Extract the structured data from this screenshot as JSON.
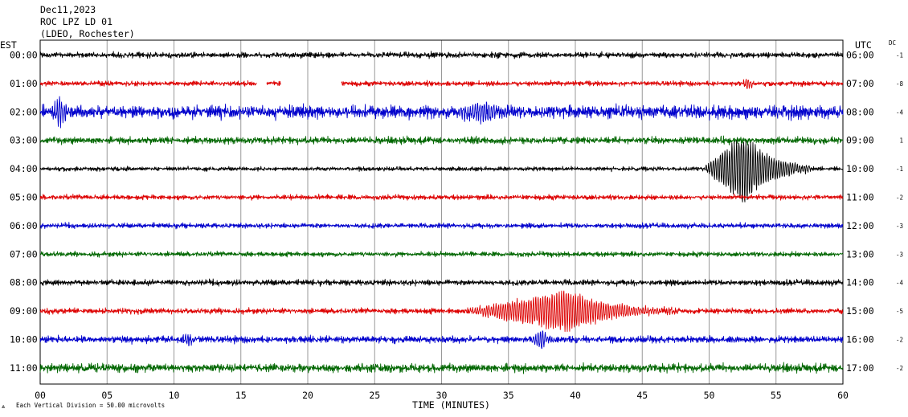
{
  "header": {
    "date": "Dec11,2023",
    "station": "ROC LPZ LD 01",
    "network": "(LDEO, Rochester)"
  },
  "chart_data": {
    "type": "line",
    "title": "",
    "xlabel": "TIME (MINUTES)",
    "left_axis_label": "EST",
    "right_axis_label": "UTC",
    "dc_label": "DC",
    "xlim": [
      0,
      60
    ],
    "x_ticks": [
      "00",
      "05",
      "10",
      "15",
      "20",
      "25",
      "30",
      "35",
      "40",
      "45",
      "50",
      "55",
      "60"
    ],
    "grid": "vertical-every-5-min",
    "colors": [
      "#000000",
      "#dd0000",
      "#0000cc",
      "#006600"
    ],
    "rows": [
      {
        "est": "00:00",
        "utc": "06:00",
        "dc": "-1",
        "color": "#000000",
        "noise": 4,
        "events": []
      },
      {
        "est": "01:00",
        "utc": "07:00",
        "dc": "-8",
        "color": "#dd0000",
        "noise": 3.5,
        "gaps": [
          [
            16.2,
            16.9
          ],
          [
            18.0,
            22.5
          ]
        ],
        "events": [
          {
            "start": 52.5,
            "end": 53.2,
            "peak": 9
          }
        ]
      },
      {
        "est": "02:00",
        "utc": "08:00",
        "dc": "-4",
        "color": "#0000cc",
        "noise": 9,
        "events": [
          {
            "start": 0.8,
            "end": 2.2,
            "peak": 22
          },
          {
            "start": 30.5,
            "end": 36,
            "peak": 14
          }
        ]
      },
      {
        "est": "03:00",
        "utc": "09:00",
        "dc": "1",
        "color": "#006600",
        "noise": 5,
        "events": []
      },
      {
        "est": "04:00",
        "utc": "10:00",
        "dc": "-1",
        "color": "#000000",
        "noise": 3,
        "events": [
          {
            "start": 49.5,
            "end": 57.5,
            "peak": 48,
            "peak_at": 52.6
          }
        ]
      },
      {
        "est": "05:00",
        "utc": "11:00",
        "dc": "-2",
        "color": "#dd0000",
        "noise": 3.5,
        "events": []
      },
      {
        "est": "06:00",
        "utc": "12:00",
        "dc": "-3",
        "color": "#0000cc",
        "noise": 3.5,
        "events": []
      },
      {
        "est": "07:00",
        "utc": "13:00",
        "dc": "-3",
        "color": "#006600",
        "noise": 3.5,
        "events": []
      },
      {
        "est": "08:00",
        "utc": "14:00",
        "dc": "-4",
        "color": "#000000",
        "noise": 4,
        "events": []
      },
      {
        "est": "09:00",
        "utc": "15:00",
        "dc": "-5",
        "color": "#dd0000",
        "noise": 4,
        "events": [
          {
            "start": 31.5,
            "end": 47.5,
            "peak": 28,
            "peak_at": 39.5
          }
        ]
      },
      {
        "est": "10:00",
        "utc": "16:00",
        "dc": "-2",
        "color": "#0000cc",
        "noise": 5,
        "events": [
          {
            "start": 36.5,
            "end": 38.5,
            "peak": 14
          },
          {
            "start": 10.5,
            "end": 11.5,
            "peak": 9
          }
        ]
      },
      {
        "est": "11:00",
        "utc": "17:00",
        "dc": "-2",
        "color": "#006600",
        "noise": 6,
        "events": []
      }
    ]
  },
  "footer": {
    "scale_note": "Each Vertical Division =   50.00 microvolts"
  }
}
